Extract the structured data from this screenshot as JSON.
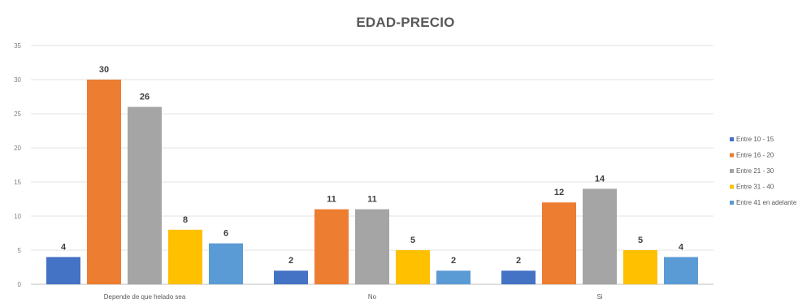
{
  "chart_data": {
    "type": "bar",
    "title": "EDAD-PRECIO",
    "xlabel": "",
    "ylabel": "",
    "ylim": [
      0,
      35
    ],
    "yticks": [
      0,
      5,
      10,
      15,
      20,
      25,
      30,
      35
    ],
    "grid": true,
    "legend_position": "right",
    "categories": [
      "Depende de que helado sea",
      "No",
      "Si"
    ],
    "series": [
      {
        "name": "Entre 10 - 15",
        "values": [
          4,
          2,
          2
        ],
        "color": "#4472C4"
      },
      {
        "name": "Entre 16 - 20",
        "values": [
          30,
          11,
          12
        ],
        "color": "#ED7D31"
      },
      {
        "name": "Entre 21 - 30",
        "values": [
          26,
          11,
          14
        ],
        "color": "#A5A5A5"
      },
      {
        "name": "Entre 31 - 40",
        "values": [
          8,
          5,
          5
        ],
        "color": "#FFC000"
      },
      {
        "name": "Entre 41 en adelante",
        "values": [
          6,
          2,
          4
        ],
        "color": "#5B9BD5"
      }
    ]
  }
}
